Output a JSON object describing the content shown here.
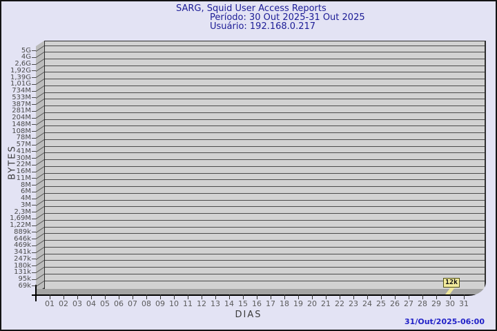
{
  "header": {
    "title": "SARG, Squid User Access Reports",
    "period": "Período: 30 Out 2025-31 Out 2025",
    "user": "Usuário: 192.168.0.217"
  },
  "footer": {
    "timestamp": "31/Out/2025-06:00"
  },
  "chart_data": {
    "type": "bar",
    "title": "SARG, Squid User Access Reports",
    "subtitle": "Período: 30 Out 2025-31 Out 2025",
    "user_line": "Usuário: 192.168.0.217",
    "xlabel": "DIAS",
    "ylabel": "BYTES",
    "x_categories": [
      "01",
      "02",
      "03",
      "04",
      "05",
      "06",
      "07",
      "08",
      "09",
      "10",
      "11",
      "12",
      "13",
      "14",
      "15",
      "16",
      "17",
      "18",
      "19",
      "20",
      "21",
      "22",
      "23",
      "24",
      "25",
      "26",
      "27",
      "28",
      "29",
      "30",
      "31"
    ],
    "y_tick_labels": [
      "5G",
      "4G",
      "2,6G",
      "1,92G",
      "1,39G",
      "1,01G",
      "734M",
      "533M",
      "387M",
      "281M",
      "204M",
      "148M",
      "108M",
      "78M",
      "57M",
      "41M",
      "30M",
      "22M",
      "16M",
      "11M",
      "8M",
      "6M",
      "4M",
      "3M",
      "2,3M",
      "1,69M",
      "1,22M",
      "889k",
      "646k",
      "469k",
      "341k",
      "247k",
      "180k",
      "131k",
      "95k",
      "69k"
    ],
    "grid": "horizontal-bands",
    "legend": "none",
    "series": [
      {
        "name": "user-bytes",
        "points": [
          {
            "x": "30",
            "label": "12k",
            "value_bytes": 12000
          }
        ]
      }
    ],
    "annotations": [
      {
        "label": "12k",
        "x": "30"
      }
    ]
  },
  "colors": {
    "page_background": "#e3e3f4",
    "page_border": "#141414",
    "title_text": "#1c1c96",
    "timestamp_text": "#2121c8",
    "tick_text": "#4a4a4a",
    "axis_title_text": "#3c3c3c",
    "plot_band": "#d2d2d2",
    "grid_line": "#4a4a4a",
    "wall_3d": "#bcbcbc",
    "floor_3d": "#a4a4a4",
    "axis_line": "#000000",
    "marker_background": "#f2eb9d",
    "marker_border": "#4f4f17"
  }
}
